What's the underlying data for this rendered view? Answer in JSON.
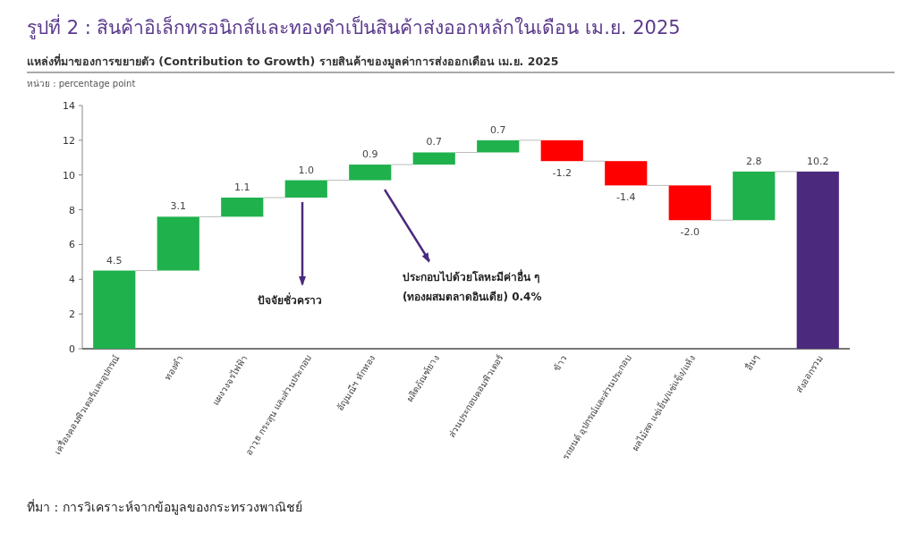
{
  "chart_data": {
    "type": "bar",
    "title": "รูปที่ 2 : สินค้าอิเล็กทรอนิกส์และทองคำเป็นสินค้าส่งออกหลักในเดือน เม.ย. 2025",
    "subtitle": "แหล่งที่มาของการขยายตัว (Contribution to Growth) รายสินค้าของมูลค่าการส่งออกเดือน เม.ย. 2025",
    "ylabel": "หน่วย : percentage point",
    "categories": [
      "เครื่องคอมพิวเตอร์และอุปกรณ์",
      "ทองคำ",
      "แผงวงจรไฟฟ้า",
      "อาวุธ กระสุน และส่วนประกอบ",
      "อัญมณีฯ หักทอง",
      "ผลิตภัณฑ์ยาง",
      "ส่วนประกอบคอมพิวเตอร์",
      "ข้าว",
      "รถยนต์ อุปกรณ์และส่วนประกอบ",
      "ผลไม้สด แช่เย็น/แช่แข็ง/แห้ง",
      "อื่นๆ",
      "ส่งออกรวม"
    ],
    "values": [
      4.5,
      3.1,
      1.1,
      1.0,
      0.9,
      0.7,
      0.7,
      -1.2,
      -1.4,
      -2.0,
      2.8,
      10.2
    ],
    "base": [
      0,
      4.5,
      7.6,
      8.7,
      9.7,
      10.6,
      11.3,
      12.0,
      10.8,
      9.4,
      7.4,
      0
    ],
    "colors": [
      "#1fb14c",
      "#1fb14c",
      "#1fb14c",
      "#1fb14c",
      "#1fb14c",
      "#1fb14c",
      "#1fb14c",
      "#ff0000",
      "#ff0000",
      "#ff0000",
      "#1fb14c",
      "#4b2a7d"
    ],
    "value_labels": [
      "4.5",
      "3.1",
      "1.1",
      "1.0",
      "0.9",
      "0.7",
      "0.7",
      "-1.2",
      "-1.4",
      "-2.0",
      "2.8",
      "10.2"
    ],
    "ylim": [
      0,
      14
    ],
    "yticks": [
      0,
      2,
      4,
      6,
      8,
      10,
      12,
      14
    ],
    "grid": false,
    "annotations": [
      "ปัจจัยชั่วคราว",
      "ประกอบไปด้วยโลหะมีค่าอื่น ๆ\n(ทองผสมตลาดอินเดีย) 0.4%",
      "ที่มา : การวิเคราะห์จากข้อมูลของกระทรวงพาณิชย์"
    ]
  }
}
